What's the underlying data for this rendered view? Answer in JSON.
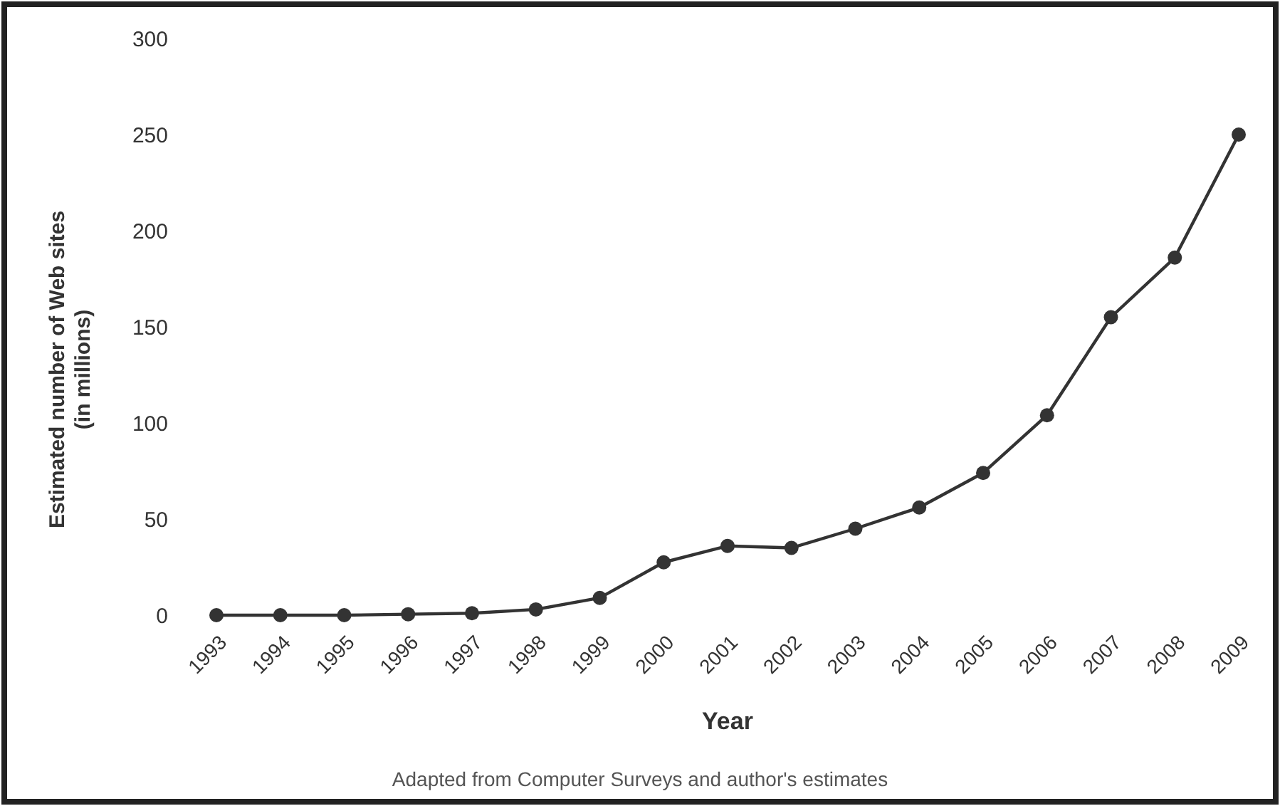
{
  "chart_data": {
    "type": "line",
    "xlabel": "Year",
    "ylabel": "Estimated number of Web sites\n(in millions)",
    "categories": [
      "1993",
      "1994",
      "1995",
      "1996",
      "1997",
      "1998",
      "1999",
      "2000",
      "2001",
      "2002",
      "2003",
      "2004",
      "2005",
      "2006",
      "2007",
      "2008",
      "2009"
    ],
    "series": [
      {
        "color": "#333333",
        "values": [
          0,
          0,
          0,
          0.5,
          1,
          3,
          9,
          27.5,
          36,
          35,
          45,
          56,
          74,
          104,
          155,
          186,
          250
        ]
      }
    ],
    "ylim": [
      0,
      300
    ],
    "yticks": [
      0,
      50,
      100,
      150,
      200,
      250,
      300
    ],
    "marker": "circle",
    "line_style": "solid",
    "annotations": [
      "Adapted from Computer Surveys and author's estimates"
    ]
  }
}
